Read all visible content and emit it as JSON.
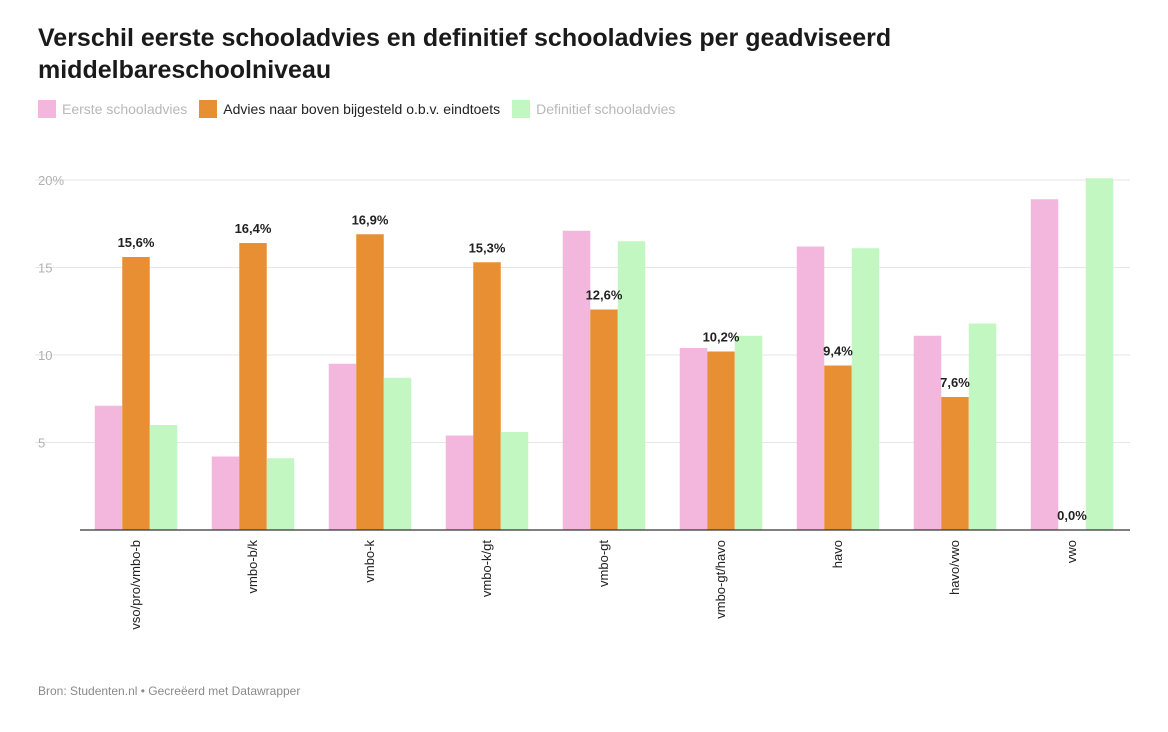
{
  "title": "Verschil eerste schooladvies en definitief schooladvies per geadviseerd middelbareschoolniveau",
  "legend": [
    {
      "label": "Eerste schooladvies",
      "color": "#f3b6dc",
      "emphasis": "muted"
    },
    {
      "label": "Advies naar boven bijgesteld o.b.v. eindtoets",
      "color": "#e88f34",
      "emphasis": "strong"
    },
    {
      "label": "Definitief schooladvies",
      "color": "#c2f7c2",
      "emphasis": "muted"
    }
  ],
  "footer": "Bron: Studenten.nl • Gecreëerd met Datawrapper",
  "chart_data": {
    "type": "bar",
    "title": "Verschil eerste schooladvies en definitief schooladvies per geadviseerd middelbareschoolniveau",
    "xlabel": "",
    "ylabel": "",
    "ylim": [
      0,
      20
    ],
    "yticks": [
      5,
      10,
      15,
      20
    ],
    "ytick_labels": [
      "5",
      "10",
      "15",
      "20%"
    ],
    "grid": true,
    "legend_position": "top-left",
    "categories": [
      "vso/pro/vmbo-b",
      "vmbo-b/k",
      "vmbo-k",
      "vmbo-k/gt",
      "vmbo-gt",
      "vmbo-gt/havo",
      "havo",
      "havo/vwo",
      "vwo"
    ],
    "series": [
      {
        "name": "Eerste schooladvies",
        "color": "#f3b6dc",
        "values": [
          7.1,
          4.2,
          9.5,
          5.4,
          17.1,
          10.4,
          16.2,
          11.1,
          18.9
        ]
      },
      {
        "name": "Advies naar boven bijgesteld o.b.v. eindtoets",
        "color": "#e88f34",
        "values": [
          15.6,
          16.4,
          16.9,
          15.3,
          12.6,
          10.2,
          9.4,
          7.6,
          0.0
        ]
      },
      {
        "name": "Definitief schooladvies",
        "color": "#c2f7c2",
        "values": [
          6.0,
          4.1,
          8.7,
          5.6,
          16.5,
          11.1,
          16.1,
          11.8,
          20.1
        ]
      }
    ],
    "data_labels": [
      "15,6%",
      "16,4%",
      "16,9%",
      "15,3%",
      "12,6%",
      "10,2%",
      "9,4%",
      "7,6%",
      "0,0%"
    ]
  }
}
